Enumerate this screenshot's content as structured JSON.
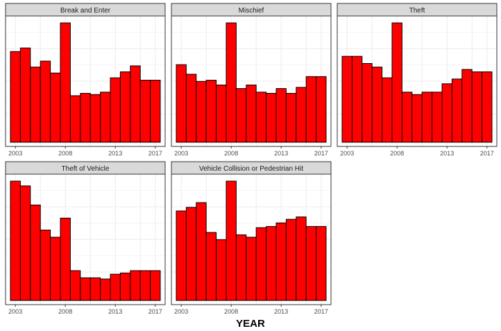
{
  "colors": {
    "bar_fill": "#ff0000",
    "bar_stroke": "#000000",
    "strip_fill": "#d9d9d9",
    "panel_border": "#333333",
    "grid": "#ebebeb"
  },
  "chart_data": {
    "type": "bar",
    "layout": "faceted-3-columns",
    "xlabel": "YEAR",
    "ylabel": "",
    "x": [
      2003,
      2004,
      2005,
      2006,
      2007,
      2008,
      2009,
      2010,
      2011,
      2012,
      2013,
      2014,
      2015,
      2016,
      2017
    ],
    "x_ticks": [
      "2003",
      "2008",
      "2013",
      "2017"
    ],
    "y_axis_labels_shown": false,
    "grid": true,
    "panels": [
      {
        "name": "Break and Enter",
        "ylim": [
          0,
          1.05
        ],
        "values": [
          0.76,
          0.79,
          0.63,
          0.68,
          0.58,
          1.0,
          0.39,
          0.41,
          0.4,
          0.42,
          0.54,
          0.59,
          0.64,
          0.52,
          0.52
        ]
      },
      {
        "name": "Mischief",
        "ylim": [
          0,
          1.05
        ],
        "values": [
          0.65,
          0.57,
          0.51,
          0.52,
          0.48,
          1.0,
          0.45,
          0.48,
          0.42,
          0.41,
          0.45,
          0.41,
          0.46,
          0.55,
          0.55
        ]
      },
      {
        "name": "Theft",
        "ylim": [
          0,
          1.05
        ],
        "values": [
          0.72,
          0.72,
          0.66,
          0.63,
          0.54,
          1.0,
          0.42,
          0.4,
          0.42,
          0.42,
          0.49,
          0.53,
          0.61,
          0.59,
          0.59
        ]
      },
      {
        "name": "Theft of Vehicle",
        "ylim": [
          0,
          1.05
        ],
        "values": [
          1.0,
          0.96,
          0.8,
          0.59,
          0.53,
          0.69,
          0.25,
          0.19,
          0.19,
          0.18,
          0.22,
          0.23,
          0.25,
          0.25,
          0.25
        ]
      },
      {
        "name": "Vehicle Collision or Pedestrian Hit",
        "ylim": [
          0,
          1.05
        ],
        "values": [
          0.75,
          0.78,
          0.82,
          0.57,
          0.51,
          1.0,
          0.55,
          0.53,
          0.61,
          0.62,
          0.65,
          0.68,
          0.7,
          0.62,
          0.62
        ]
      }
    ]
  }
}
